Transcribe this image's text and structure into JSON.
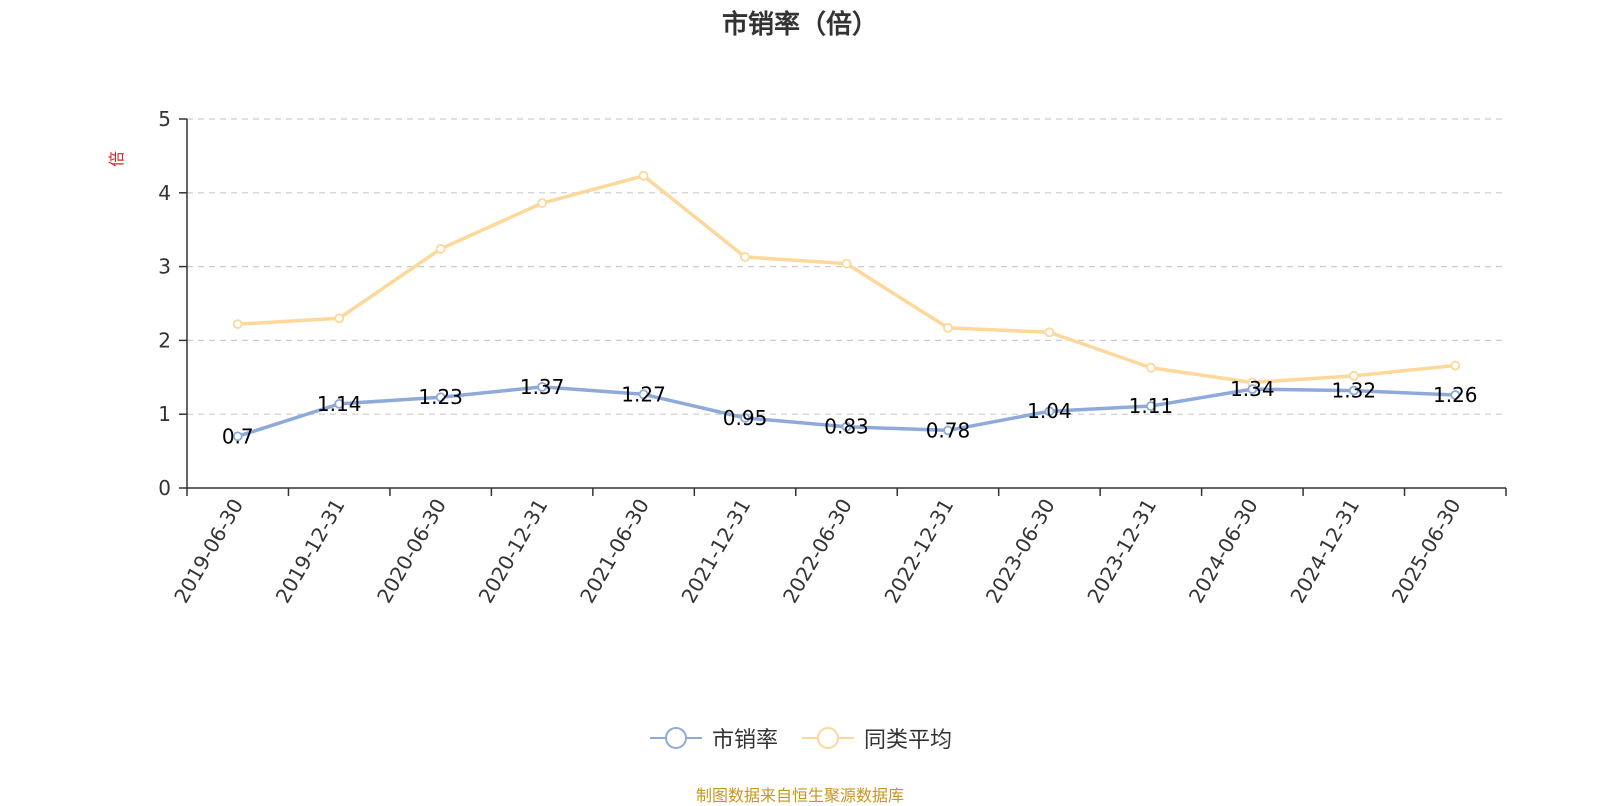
{
  "title": "市销率（倍）",
  "source_note": "制图数据来自恒生聚源数据库",
  "legend": {
    "series1": "市销率",
    "series2": "同类平均"
  },
  "colors": {
    "series1": "#8eaadb",
    "series2": "#fdd89a",
    "grid": "#cccccc",
    "axis": "#333333",
    "unit_label": "#e02020",
    "source": "#c8961e"
  },
  "chart_data": {
    "type": "line",
    "title": "市销率（倍）",
    "ylabel": "倍",
    "xlabel": "",
    "ylim": [
      0,
      5
    ],
    "yticks": [
      0,
      1,
      2,
      3,
      4,
      5
    ],
    "grid": true,
    "legend_position": "bottom",
    "categories": [
      "2019-06-30",
      "2019-12-31",
      "2020-06-30",
      "2020-12-31",
      "2021-06-30",
      "2021-12-31",
      "2022-06-30",
      "2022-12-31",
      "2023-06-30",
      "2023-12-31",
      "2024-06-30",
      "2024-12-31",
      "2025-06-30"
    ],
    "series": [
      {
        "name": "市销率",
        "values": [
          0.7,
          1.14,
          1.23,
          1.37,
          1.27,
          0.95,
          0.83,
          0.78,
          1.04,
          1.11,
          1.34,
          1.32,
          1.26
        ],
        "labels": [
          "0.7",
          "1.14",
          "1.23",
          "1.37",
          "1.27",
          "0.95",
          "0.83",
          "0.78",
          "1.04",
          "1.11",
          "1.34",
          "1.32",
          "1.26"
        ]
      },
      {
        "name": "同类平均",
        "values": [
          2.22,
          2.3,
          3.24,
          3.86,
          4.23,
          3.13,
          3.04,
          2.17,
          2.11,
          1.63,
          1.43,
          1.52,
          1.66
        ]
      }
    ]
  }
}
